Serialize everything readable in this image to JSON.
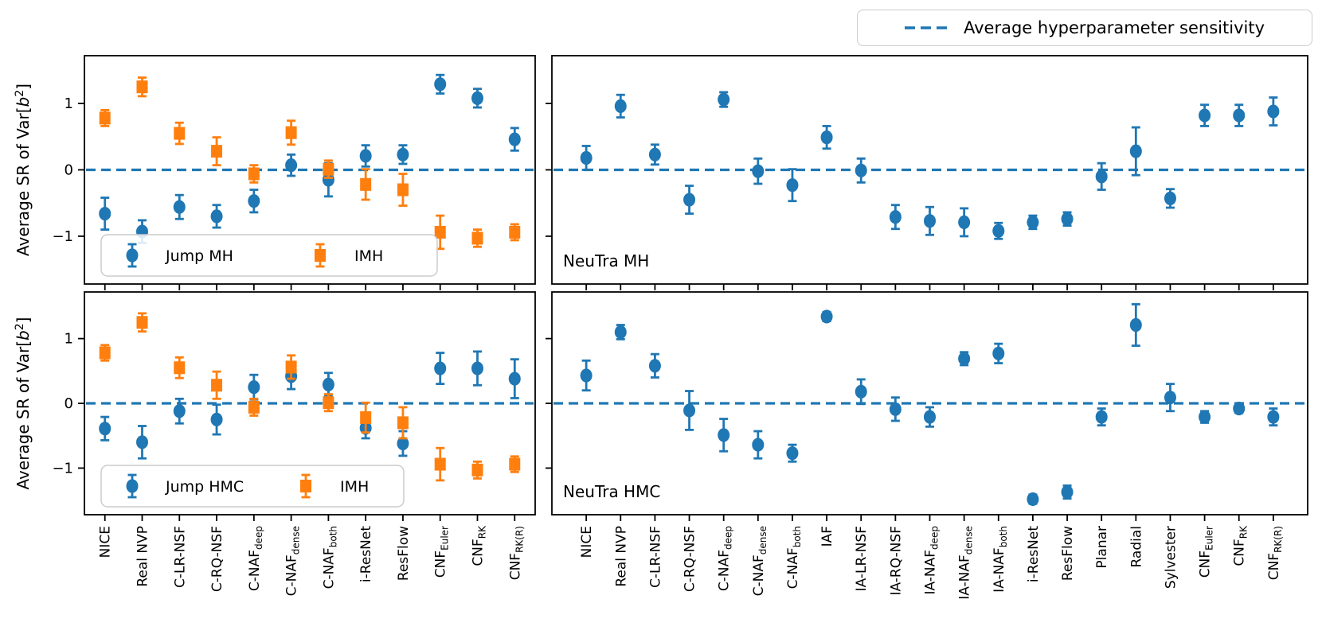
{
  "page": {
    "background": "#ffffff"
  },
  "top_legend": {
    "label": "Average hyperparameter sensitivity"
  },
  "chart_data": {
    "type": "scatter",
    "title": "",
    "ylabel": {
      "prefix": "Average SR of Var[",
      "var": "b",
      "sup": "2",
      "suffix": "]"
    },
    "yticks": [
      1,
      0,
      -1
    ],
    "ylim": [
      -1.72,
      1.72
    ],
    "grid": false,
    "reference_line": {
      "y": 0,
      "style": "dashed",
      "color": "#1f77b4",
      "label": "Average hyperparameter sensitivity"
    },
    "colors": {
      "blue": "#1f77b4",
      "orange": "#ff7f0e",
      "axis": "#000000",
      "legend_border": "#cccccc"
    },
    "categories_left": [
      {
        "label": "NICE"
      },
      {
        "label": "Real NVP"
      },
      {
        "label": "C-LR-NSF"
      },
      {
        "label": "C-RQ-NSF"
      },
      {
        "label": "C-NAF",
        "sub": "deep"
      },
      {
        "label": "C-NAF",
        "sub": "dense"
      },
      {
        "label": "C-NAF",
        "sub": "both"
      },
      {
        "label": "i-ResNet"
      },
      {
        "label": "ResFlow"
      },
      {
        "label": "CNF",
        "sub": "Euler"
      },
      {
        "label": "CNF",
        "sub": "RK"
      },
      {
        "label": "CNF",
        "sub": "RK(R)"
      }
    ],
    "categories_right": [
      {
        "label": "NICE"
      },
      {
        "label": "Real NVP"
      },
      {
        "label": "C-LR-NSF"
      },
      {
        "label": "C-RQ-NSF"
      },
      {
        "label": "C-NAF",
        "sub": "deep"
      },
      {
        "label": "C-NAF",
        "sub": "dense"
      },
      {
        "label": "C-NAF",
        "sub": "both"
      },
      {
        "label": "IAF"
      },
      {
        "label": "IA-LR-NSF"
      },
      {
        "label": "IA-RQ-NSF"
      },
      {
        "label": "IA-NAF",
        "sub": "deep"
      },
      {
        "label": "IA-NAF",
        "sub": "dense"
      },
      {
        "label": "IA-NAF",
        "sub": "both"
      },
      {
        "label": "i-ResNet"
      },
      {
        "label": "ResFlow"
      },
      {
        "label": "Planar"
      },
      {
        "label": "Radial"
      },
      {
        "label": "Sylvester"
      },
      {
        "label": "CNF",
        "sub": "Euler"
      },
      {
        "label": "CNF",
        "sub": "RK"
      },
      {
        "label": "CNF",
        "sub": "RK(R)"
      }
    ],
    "panels": [
      {
        "position": "top-left",
        "categories": "left",
        "tag": "",
        "legend": {
          "items": [
            {
              "label": "Jump MH",
              "series": 0
            },
            {
              "label": "IMH",
              "series": 1
            }
          ]
        },
        "series": [
          {
            "name": "Jump MH",
            "marker": "circle",
            "color": "#1f77b4",
            "values": [
              -0.66,
              -0.93,
              -0.56,
              -0.7,
              -0.47,
              0.07,
              -0.15,
              0.21,
              0.23,
              1.29,
              1.08,
              0.46
            ],
            "errors": [
              0.24,
              0.17,
              0.18,
              0.17,
              0.17,
              0.16,
              0.25,
              0.16,
              0.14,
              0.14,
              0.14,
              0.17
            ]
          },
          {
            "name": "IMH",
            "marker": "square",
            "color": "#ff7f0e",
            "values": [
              0.78,
              1.25,
              0.55,
              0.28,
              -0.06,
              0.56,
              0.01,
              -0.22,
              -0.3,
              -0.94,
              -1.03,
              -0.94
            ],
            "errors": [
              0.12,
              0.14,
              0.16,
              0.21,
              0.13,
              0.18,
              0.13,
              0.23,
              0.24,
              0.25,
              0.13,
              0.12
            ]
          }
        ]
      },
      {
        "position": "top-right",
        "categories": "right",
        "tag": "NeuTra MH",
        "series": [
          {
            "name": "NeuTra MH",
            "marker": "circle",
            "color": "#1f77b4",
            "values": [
              0.18,
              0.96,
              0.23,
              -0.45,
              1.06,
              -0.02,
              -0.23,
              0.49,
              -0.01,
              -0.71,
              -0.77,
              -0.79,
              -0.92,
              -0.79,
              -0.74,
              -0.1,
              0.28,
              -0.43,
              0.82,
              0.82,
              0.88
            ],
            "errors": [
              0.18,
              0.17,
              0.15,
              0.21,
              0.11,
              0.19,
              0.24,
              0.17,
              0.18,
              0.18,
              0.21,
              0.21,
              0.12,
              0.1,
              0.1,
              0.2,
              0.36,
              0.14,
              0.16,
              0.16,
              0.21
            ]
          }
        ]
      },
      {
        "position": "bottom-left",
        "categories": "left",
        "tag": "",
        "legend": {
          "items": [
            {
              "label": "Jump HMC",
              "series": 0
            },
            {
              "label": "IMH",
              "series": 1
            }
          ]
        },
        "series": [
          {
            "name": "Jump HMC",
            "marker": "circle",
            "color": "#1f77b4",
            "values": [
              -0.39,
              -0.6,
              -0.12,
              -0.25,
              0.25,
              0.42,
              0.29,
              -0.38,
              -0.62,
              0.54,
              0.54,
              0.38
            ],
            "errors": [
              0.18,
              0.25,
              0.19,
              0.23,
              0.19,
              0.2,
              0.18,
              0.16,
              0.19,
              0.24,
              0.26,
              0.3
            ]
          },
          {
            "name": "IMH",
            "marker": "square",
            "color": "#ff7f0e",
            "values": [
              0.78,
              1.25,
              0.55,
              0.28,
              -0.06,
              0.56,
              0.01,
              -0.22,
              -0.3,
              -0.94,
              -1.03,
              -0.94
            ],
            "errors": [
              0.12,
              0.14,
              0.16,
              0.21,
              0.13,
              0.18,
              0.13,
              0.23,
              0.24,
              0.25,
              0.13,
              0.12
            ]
          }
        ]
      },
      {
        "position": "bottom-right",
        "categories": "right",
        "tag": "NeuTra HMC",
        "series": [
          {
            "name": "NeuTra HMC",
            "marker": "circle",
            "color": "#1f77b4",
            "values": [
              0.43,
              1.1,
              0.58,
              -0.11,
              -0.49,
              -0.64,
              -0.77,
              1.34,
              0.18,
              -0.09,
              -0.21,
              0.69,
              0.77,
              -1.48,
              -1.37,
              -0.21,
              1.21,
              0.09,
              -0.21,
              -0.08,
              -0.21
            ],
            "errors": [
              0.23,
              0.11,
              0.18,
              0.3,
              0.25,
              0.21,
              0.13,
              0.07,
              0.19,
              0.18,
              0.15,
              0.1,
              0.15,
              0.07,
              0.1,
              0.13,
              0.32,
              0.21,
              0.09,
              0.07,
              0.13
            ]
          }
        ]
      }
    ]
  }
}
